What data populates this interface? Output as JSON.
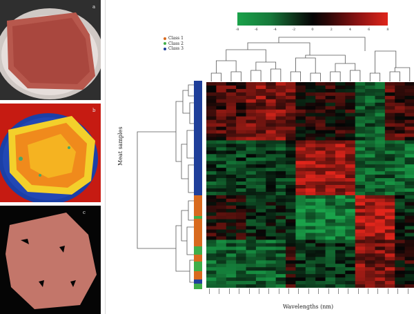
{
  "panel_labels": {
    "a": "a",
    "b": "b",
    "c": "c"
  },
  "colorbar": {
    "ticks": [
      "-8",
      "-6",
      "-4",
      "-2",
      "0",
      "2",
      "4",
      "6",
      "8"
    ]
  },
  "legend": [
    {
      "label": "Class 1",
      "color": "#d86a1e"
    },
    {
      "label": "Class 2",
      "color": "#3fae49"
    },
    {
      "label": "Class 3",
      "color": "#1f3f9a"
    }
  ],
  "axis": {
    "ylabel": "Meat samples",
    "xlabel": "Wavelengths (nm)"
  },
  "colors": {
    "high": "#e0251b",
    "mid": "#050505",
    "low": "#1aa24a",
    "class1": "#d86a1e",
    "class2": "#3fae49",
    "class3": "#1f3f9a"
  }
}
